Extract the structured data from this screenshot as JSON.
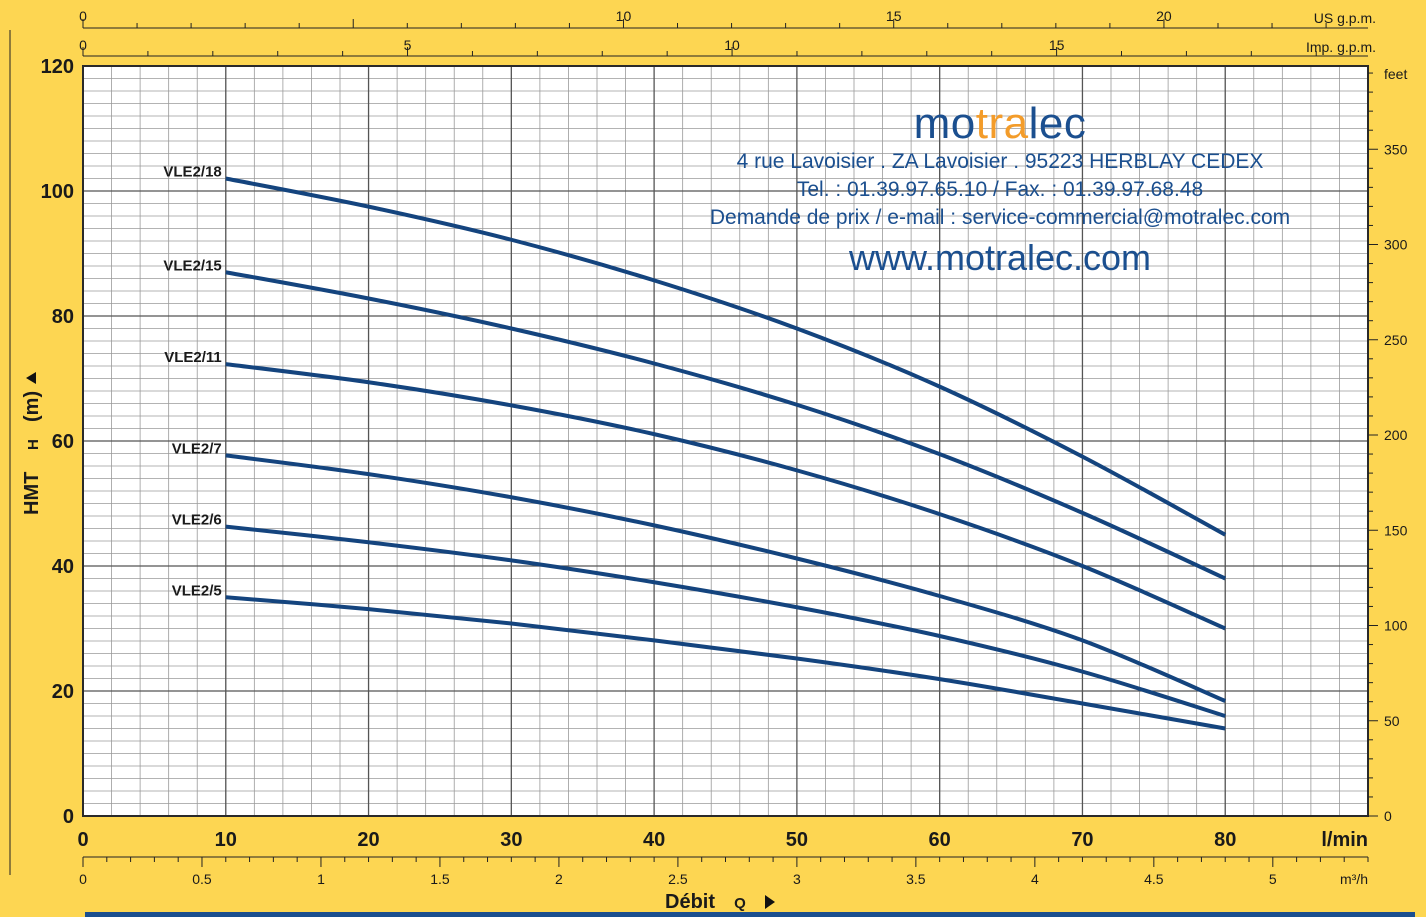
{
  "brand": {
    "logo_pre": "mo",
    "logo_accent": "tra",
    "logo_post": "lec",
    "address": "4 rue Lavoisier . ZA Lavoisier . 95223 HERBLAY CEDEX",
    "phone": "Tel. : 01.39.97.65.10 / Fax. : 01.39.97.68.48",
    "email_line": "Demande de prix / e-mail : service-commercial@motralec.com",
    "website": "www.motralec.com",
    "colors": {
      "text": "#1b4f8f",
      "accent": "#f39c2a"
    }
  },
  "chart_data": {
    "type": "line",
    "background": "#fdd652",
    "plot_background": "#ffffff",
    "curve_color": "#14447e",
    "grid": true,
    "xlabel": "Débit",
    "xlabel_symbol": "Q",
    "ylabel": "HMT",
    "ylabel_symbol": "H",
    "ylabel_unit": "(m)",
    "xlim": [
      0,
      90
    ],
    "ylim": [
      0,
      120
    ],
    "x_ticks": [
      0,
      10,
      20,
      30,
      40,
      50,
      60,
      70,
      80
    ],
    "x_unit_label": "l/min",
    "y_ticks": [
      0,
      20,
      40,
      60,
      80,
      100,
      120
    ],
    "secondary_axes": {
      "us_gpm": {
        "label": "US g.p.m.",
        "ticks": [
          "0",
          "10",
          "15",
          "20"
        ],
        "values": [
          0,
          10,
          15,
          20
        ]
      },
      "imp_gpm": {
        "label": "Imp. g.p.m.",
        "ticks": [
          "0",
          "5",
          "10",
          "15"
        ],
        "values": [
          0,
          5,
          10,
          15
        ]
      },
      "m3h": {
        "label": "m³/h",
        "ticks": [
          "0",
          "0.5",
          "1",
          "1.5",
          "2",
          "2.5",
          "3",
          "3.5",
          "4",
          "4.5",
          "5"
        ],
        "values": [
          0,
          0.5,
          1,
          1.5,
          2,
          2.5,
          3,
          3.5,
          4,
          4.5,
          5
        ]
      },
      "feet": {
        "label": "feet",
        "ticks": [
          "0",
          "50",
          "100",
          "150",
          "200",
          "250",
          "300",
          "350"
        ],
        "values": [
          0,
          50,
          100,
          150,
          200,
          250,
          300,
          350
        ]
      }
    },
    "x": [
      10,
      20,
      30,
      40,
      50,
      60,
      70,
      80
    ],
    "series": [
      {
        "name": "VLE2/18",
        "values": [
          102,
          97.5,
          92.2,
          85.7,
          78,
          68.7,
          57.5,
          45
        ]
      },
      {
        "name": "VLE2/15",
        "values": [
          87,
          82.8,
          78,
          72.4,
          65.8,
          57.9,
          48.5,
          38
        ]
      },
      {
        "name": "VLE2/11",
        "values": [
          72.3,
          69.4,
          65.7,
          61.1,
          55.3,
          48.3,
          40,
          30
        ]
      },
      {
        "name": "VLE2/7",
        "values": [
          57.7,
          54.7,
          51,
          46.5,
          41.2,
          35.2,
          28.1,
          18.4
        ]
      },
      {
        "name": "VLE2/6",
        "values": [
          46.3,
          43.8,
          40.9,
          37.4,
          33.4,
          28.8,
          23.1,
          16
        ]
      },
      {
        "name": "VLE2/5",
        "values": [
          35,
          33.1,
          30.8,
          28.1,
          25.2,
          21.9,
          18,
          14
        ]
      }
    ]
  }
}
